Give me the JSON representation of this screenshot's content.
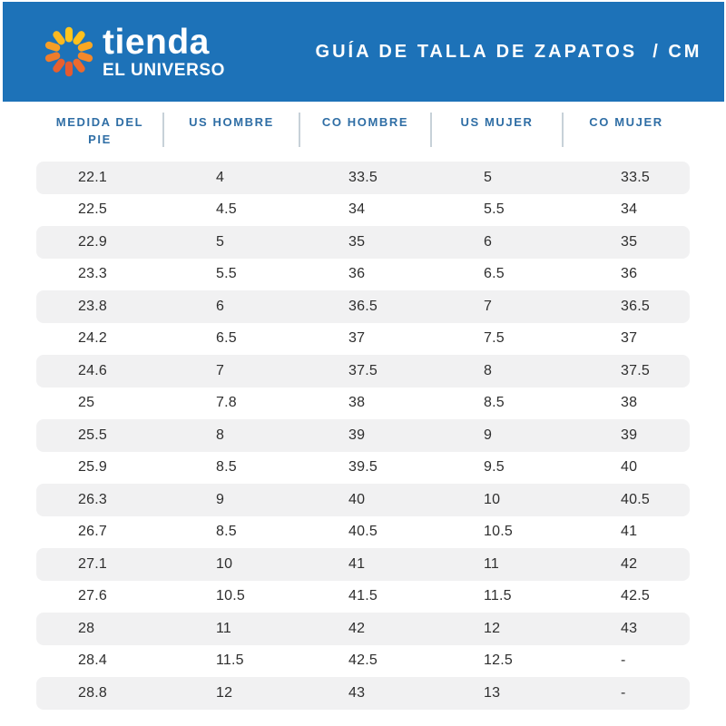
{
  "brand": {
    "name_line1": "tienda",
    "name_line2": "EL UNIVERSO",
    "logo": {
      "icon": "sunburst-icon",
      "petal_colors": [
        "#FFC61E",
        "#FFC01D",
        "#FBA723",
        "#F4882A",
        "#EC6A2E",
        "#E55A2F",
        "#E7602E",
        "#EF7C2B",
        "#F79E26",
        "#FDB91F"
      ]
    }
  },
  "header": {
    "title": "GUÍA DE TALLA DE ZAPATOS  / CM",
    "bg_color": "#1D72B8",
    "text_color": "#FFFFFF"
  },
  "colors": {
    "banner_blue": "#1D72B8",
    "column_header_blue": "#2F6EA5",
    "divider_gray": "#C7D1D8",
    "stripe_gray": "#F1F1F2",
    "data_text": "#2E2E2E"
  },
  "chart_data": {
    "type": "table",
    "title": "GUÍA DE TALLA DE ZAPATOS / CM",
    "columns": [
      "MEDIDA DEL PIE",
      "US HOMBRE",
      "CO HOMBRE",
      "US MUJER",
      "CO MUJER"
    ],
    "rows": [
      [
        "22.1",
        "4",
        "33.5",
        "5",
        "33.5"
      ],
      [
        "22.5",
        "4.5",
        "34",
        "5.5",
        "34"
      ],
      [
        "22.9",
        "5",
        "35",
        "6",
        "35"
      ],
      [
        "23.3",
        "5.5",
        "36",
        "6.5",
        "36"
      ],
      [
        "23.8",
        "6",
        "36.5",
        "7",
        "36.5"
      ],
      [
        "24.2",
        "6.5",
        "37",
        "7.5",
        "37"
      ],
      [
        "24.6",
        "7",
        "37.5",
        "8",
        "37.5"
      ],
      [
        "25",
        "7.8",
        "38",
        "8.5",
        "38"
      ],
      [
        "25.5",
        "8",
        "39",
        "9",
        "39"
      ],
      [
        "25.9",
        "8.5",
        "39.5",
        "9.5",
        "40"
      ],
      [
        "26.3",
        "9",
        "40",
        "10",
        "40.5"
      ],
      [
        "26.7",
        "8.5",
        "40.5",
        "10.5",
        "41"
      ],
      [
        "27.1",
        "10",
        "41",
        "11",
        "42"
      ],
      [
        "27.6",
        "10.5",
        "41.5",
        "11.5",
        "42.5"
      ],
      [
        "28",
        "11",
        "42",
        "12",
        "43"
      ],
      [
        "28.4",
        "11.5",
        "42.5",
        "12.5",
        "-"
      ],
      [
        "28.8",
        "12",
        "43",
        "13",
        "-"
      ]
    ],
    "layout": {
      "striped_rows": "odd",
      "header_position": "top",
      "grid": false
    }
  }
}
